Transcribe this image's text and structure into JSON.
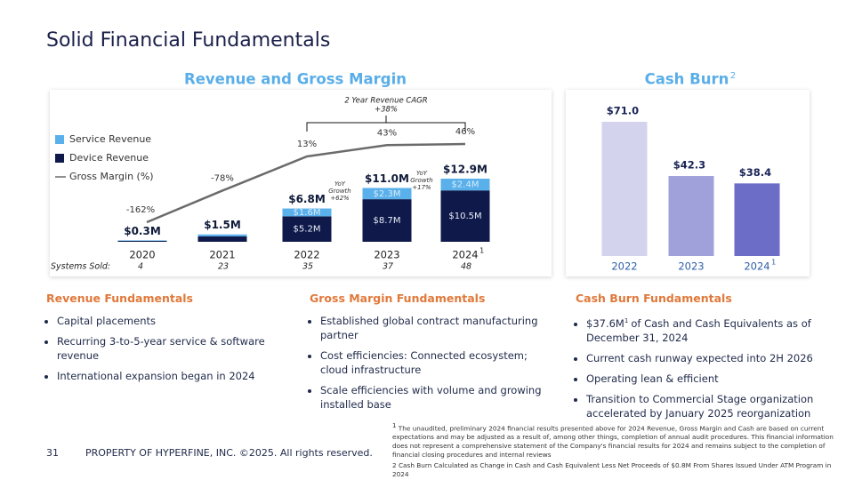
{
  "title": "Solid Financial Fundamentals",
  "chart_data": [
    {
      "type": "bar",
      "title": "Revenue and Gross Margin",
      "stacked": true,
      "categories": [
        "2020",
        "2021",
        "2022",
        "2023",
        "2024"
      ],
      "category_notes": [
        null,
        null,
        null,
        null,
        "1"
      ],
      "series": [
        {
          "name": "Device Revenue",
          "color": "#0f1a4b",
          "values": [
            0.2,
            1.1,
            5.2,
            8.7,
            10.5
          ],
          "value_labels": [
            null,
            null,
            "$5.2M",
            "$8.7M",
            "$10.5M"
          ]
        },
        {
          "name": "Service Revenue",
          "color": "#5ab0ea",
          "values": [
            0.1,
            0.4,
            1.6,
            2.3,
            2.4
          ],
          "value_labels": [
            null,
            null,
            "$1.6M",
            "$2.3M",
            "$2.4M"
          ]
        },
        {
          "name": "Gross Margin (%)",
          "type": "line",
          "color": "#6b6b6b",
          "values": [
            -162,
            -78,
            13,
            43,
            46
          ],
          "value_labels": [
            "-162%",
            "-78%",
            "13%",
            "43%",
            "46%"
          ]
        }
      ],
      "totals": {
        "values": [
          0.3,
          1.5,
          6.8,
          11.0,
          12.9
        ],
        "value_labels": [
          "$0.3M",
          "$1.5M",
          "$6.8M",
          "$11.0M",
          "$12.9M"
        ]
      },
      "cagr": {
        "label": "2 Year Revenue CAGR",
        "value": "+38%"
      },
      "yoy": [
        {
          "label": "YoY Growth",
          "value": "+62%"
        },
        {
          "label": "YoY Growth",
          "value": "+17%"
        }
      ],
      "row": {
        "label": "Systems Sold:",
        "values": [
          4,
          23,
          35,
          37,
          48
        ]
      }
    },
    {
      "type": "bar",
      "title": "Cash Burn",
      "title_note": "2",
      "categories": [
        "2022",
        "2023",
        "2024"
      ],
      "category_notes": [
        null,
        null,
        "1"
      ],
      "values": [
        71.0,
        42.3,
        38.4
      ],
      "value_labels": [
        "$71.0",
        "$42.3",
        "$38.4"
      ],
      "colors": [
        "#d3d3ee",
        "#a0a0da",
        "#6c6dc6"
      ]
    }
  ],
  "sections": [
    {
      "heading": "Revenue Fundamentals",
      "items": [
        "Capital placements",
        "Recurring 3-to-5-year service & software revenue",
        "International expansion began in 2024"
      ]
    },
    {
      "heading": "Gross Margin Fundamentals",
      "items": [
        "Established global contract manufacturing partner",
        "Cost efficiencies: Connected ecosystem; cloud infrastructure",
        "Scale efficiencies with volume and growing installed base"
      ]
    },
    {
      "heading": "Cash Burn Fundamentals",
      "items": [
        {
          "text": "$37.6M",
          "note": "1",
          "rest": "of Cash and Cash Equivalents as of December 31, 2024"
        },
        "Current cash runway expected into 2H 2026",
        "Operating lean & efficient",
        "Transition to Commercial Stage organization accelerated by January 2025 reorganization"
      ]
    }
  ],
  "footnotes": [
    {
      "note": "1",
      "text": "The unaudited, preliminary 2024 financial results presented above for 2024 Revenue, Gross Margin and Cash are based on current expectations and may be adjusted as a result of, among other things, completion of annual audit procedures.   This financial information does not represent a comprehensive statement of the Company's financial results for 2024 and remains subject to the completion of financial closing procedures and internal reviews"
    },
    {
      "text": "2 Cash Burn Calculated as Change in Cash and Cash Equivalent Less Net Proceeds of $0.8M From Shares Issued Under ATM Program in 2024"
    }
  ],
  "footer": {
    "page": "31",
    "text": "PROPERTY OF HYPERFINE, INC. ©2025. All rights reserved."
  }
}
